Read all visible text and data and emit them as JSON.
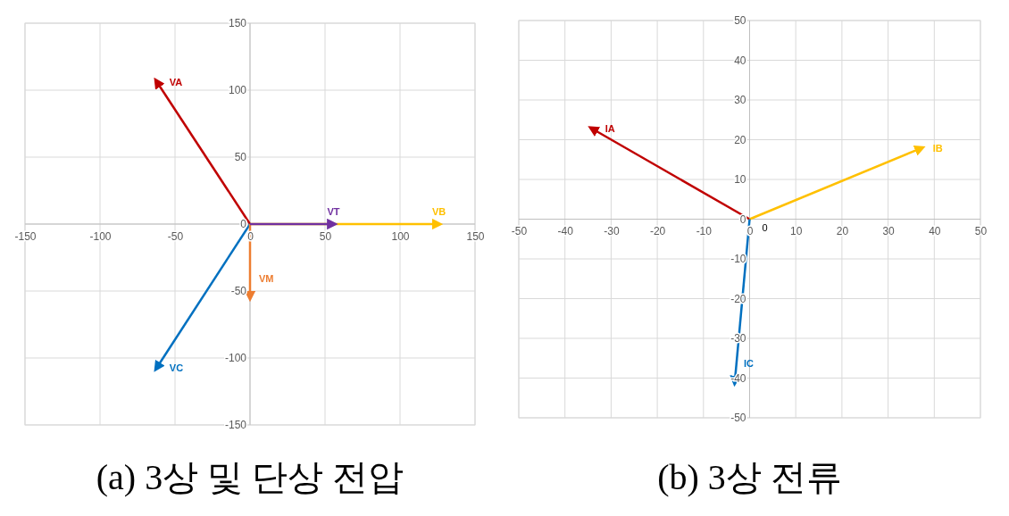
{
  "chart_data": [
    {
      "type": "line",
      "title": "(a) 3상 및 단상 전압",
      "xlim": [
        -150,
        150
      ],
      "ylim": [
        -150,
        150
      ],
      "xticks": [
        -150,
        -100,
        -50,
        0,
        50,
        100,
        150
      ],
      "yticks": [
        -150,
        -100,
        -50,
        0,
        50,
        100,
        150
      ],
      "grid": true,
      "legend": false,
      "marker": "none",
      "line_style": "solid",
      "series": [
        {
          "name": "VA",
          "color": "#c00000",
          "x": [
            0,
            -62
          ],
          "values": [
            0,
            106
          ]
        },
        {
          "name": "VB",
          "color": "#ffc000",
          "x": [
            0,
            125
          ],
          "values": [
            0,
            0
          ]
        },
        {
          "name": "VC",
          "color": "#0070c0",
          "x": [
            0,
            -62
          ],
          "values": [
            0,
            -107
          ]
        },
        {
          "name": "VM",
          "color": "#ed7d31",
          "x": [
            0,
            0
          ],
          "values": [
            0,
            -54
          ]
        },
        {
          "name": "VT",
          "color": "#7030a0",
          "x": [
            0,
            55
          ],
          "values": [
            0,
            0
          ]
        }
      ]
    },
    {
      "type": "line",
      "title": "(b) 3상 전류",
      "xlim": [
        -50,
        50
      ],
      "ylim": [
        -50,
        50
      ],
      "xticks": [
        -50,
        -40,
        -30,
        -20,
        -10,
        0,
        10,
        20,
        30,
        40,
        50
      ],
      "yticks": [
        -50,
        -40,
        -30,
        -20,
        -10,
        0,
        10,
        20,
        30,
        40,
        50
      ],
      "grid": true,
      "legend": false,
      "marker": "none",
      "line_style": "solid",
      "annotations": [
        {
          "text": "0",
          "x": 0,
          "y": 0
        }
      ],
      "series": [
        {
          "name": "IA",
          "color": "#c00000",
          "x": [
            0,
            -34
          ],
          "values": [
            0,
            22.7
          ]
        },
        {
          "name": "IB",
          "color": "#ffc000",
          "x": [
            0,
            37
          ],
          "values": [
            0,
            17.8
          ]
        },
        {
          "name": "IC",
          "color": "#0070c0",
          "x": [
            0,
            -3.2
          ],
          "values": [
            0,
            -40.8
          ]
        }
      ]
    }
  ]
}
